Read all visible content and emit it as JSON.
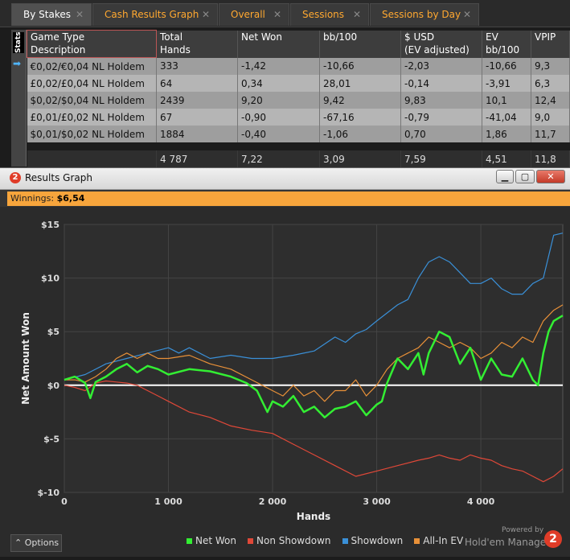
{
  "tabs": [
    {
      "label": "By Stakes",
      "active": true
    },
    {
      "label": "Cash Results Graph",
      "active": false
    },
    {
      "label": "Overall",
      "active": false
    },
    {
      "label": "Sessions",
      "active": false
    },
    {
      "label": "Sessions by Day",
      "active": false
    }
  ],
  "stats_label": "Stats",
  "table": {
    "headers": [
      [
        "Game Type",
        "Description"
      ],
      [
        "Total",
        "Hands"
      ],
      [
        "Net Won",
        ""
      ],
      [
        "bb/100",
        ""
      ],
      [
        "$ USD",
        "(EV adjusted)"
      ],
      [
        "EV",
        "bb/100"
      ],
      [
        "VPIP",
        ""
      ]
    ],
    "rows": [
      [
        "€0,02/€0,04 NL Holdem",
        "333",
        "-1,42",
        "-10,66",
        "-2,03",
        "-10,66",
        "9,3"
      ],
      [
        "£0,02/£0,04 NL Holdem",
        "64",
        "0,34",
        "28,01",
        "-0,14",
        "-3,91",
        "6,3"
      ],
      [
        "$0,02/$0,04 NL Holdem",
        "2439",
        "9,20",
        "9,42",
        "9,83",
        "10,1",
        "12,4"
      ],
      [
        "£0,01/£0,02 NL Holdem",
        "67",
        "-0,90",
        "-67,16",
        "-0,79",
        "-41,04",
        "9,0"
      ],
      [
        "$0,01/$0,02 NL Holdem",
        "1884",
        "-0,40",
        "-1,06",
        "0,70",
        "1,86",
        "11,7"
      ]
    ],
    "totals": [
      "",
      "4 787",
      "7,22",
      "3,09",
      "7,59",
      "4,51",
      "11,8"
    ]
  },
  "window": {
    "title": "Results Graph",
    "app_icon": "2",
    "minimize_icon": "minimize-icon",
    "maximize_icon": "maximize-icon",
    "close_icon": "close-icon",
    "winnings_label": "Winnings:",
    "winnings_value": "$6,54"
  },
  "options_label": "Options",
  "powered_by": "Powered by",
  "brand": "Hold'em Manager",
  "brand_logo": "2",
  "colors": {
    "net_won": "#33ee33",
    "non_showdown": "#e04838",
    "showdown": "#3a90d8",
    "all_in_ev": "#e89038",
    "accent": "#f7a53c"
  },
  "chart_data": {
    "type": "line",
    "title": "",
    "xlabel": "Hands",
    "ylabel": "Net Amount Won",
    "xlim": [
      0,
      4787
    ],
    "ylim": [
      -10,
      15
    ],
    "xticks": [
      0,
      1000,
      2000,
      3000,
      4000
    ],
    "xtick_labels": [
      "0",
      "1 000",
      "2 000",
      "3 000",
      "4 000"
    ],
    "yticks": [
      -10,
      -5,
      0,
      5,
      10,
      15
    ],
    "ytick_labels": [
      "$-10",
      "$-5",
      "$0",
      "$5",
      "$10",
      "$15"
    ],
    "grid": true,
    "legend_position": "bottom-right",
    "series": [
      {
        "name": "Net Won",
        "x": [
          0,
          100,
          200,
          250,
          300,
          400,
          500,
          600,
          700,
          800,
          900,
          1000,
          1200,
          1400,
          1600,
          1750,
          1850,
          1900,
          1950,
          2000,
          2100,
          2200,
          2300,
          2400,
          2500,
          2600,
          2700,
          2800,
          2900,
          3000,
          3050,
          3100,
          3200,
          3300,
          3400,
          3450,
          3500,
          3600,
          3700,
          3800,
          3900,
          4000,
          4100,
          4200,
          4300,
          4400,
          4500,
          4550,
          4600,
          4650,
          4700,
          4787
        ],
        "y": [
          0.5,
          0.8,
          0.2,
          -1.2,
          0.3,
          0.8,
          1.5,
          2.0,
          1.2,
          1.8,
          1.5,
          1.0,
          1.5,
          1.3,
          0.8,
          0.2,
          -0.5,
          -1.5,
          -2.5,
          -1.5,
          -2.0,
          -1.0,
          -2.5,
          -2.0,
          -3.0,
          -2.2,
          -2.0,
          -1.5,
          -2.8,
          -1.8,
          -1.5,
          0.2,
          2.5,
          1.5,
          3.0,
          1.0,
          3.0,
          5.0,
          4.5,
          2.0,
          3.5,
          0.5,
          2.5,
          1.0,
          0.8,
          2.5,
          0.5,
          0.0,
          3.0,
          5.0,
          6.0,
          6.5
        ]
      },
      {
        "name": "Non Showdown",
        "x": [
          0,
          100,
          200,
          300,
          400,
          500,
          600,
          700,
          800,
          900,
          1000,
          1200,
          1400,
          1600,
          1800,
          2000,
          2200,
          2400,
          2600,
          2800,
          3000,
          3200,
          3400,
          3500,
          3600,
          3700,
          3800,
          3900,
          4000,
          4100,
          4200,
          4300,
          4400,
          4500,
          4600,
          4700,
          4787
        ],
        "y": [
          0,
          -0.2,
          -0.5,
          0.2,
          0.4,
          0.3,
          0.2,
          0.0,
          -0.5,
          -1.0,
          -1.5,
          -2.5,
          -3.0,
          -3.8,
          -4.2,
          -4.5,
          -5.5,
          -6.5,
          -7.5,
          -8.5,
          -8.0,
          -7.5,
          -7.0,
          -6.8,
          -6.5,
          -6.8,
          -7.0,
          -6.5,
          -6.8,
          -7.0,
          -7.5,
          -7.8,
          -8.0,
          -8.5,
          -9.0,
          -8.5,
          -7.8
        ]
      },
      {
        "name": "Showdown",
        "x": [
          0,
          200,
          400,
          600,
          800,
          1000,
          1100,
          1200,
          1400,
          1600,
          1800,
          2000,
          2200,
          2400,
          2600,
          2700,
          2800,
          2900,
          3000,
          3200,
          3300,
          3400,
          3500,
          3600,
          3700,
          3800,
          3900,
          4000,
          4100,
          4200,
          4300,
          4400,
          4500,
          4600,
          4700,
          4787
        ],
        "y": [
          0.5,
          1.0,
          2.0,
          2.5,
          3.0,
          3.5,
          3.0,
          3.5,
          2.5,
          2.8,
          2.5,
          2.5,
          2.8,
          3.2,
          4.5,
          4.0,
          4.8,
          5.2,
          6.0,
          7.5,
          8.0,
          10.0,
          11.5,
          12.0,
          11.5,
          10.5,
          9.5,
          9.5,
          10.0,
          9.0,
          8.5,
          8.5,
          9.5,
          10.0,
          14.0,
          14.2
        ]
      },
      {
        "name": "All-In EV",
        "x": [
          0,
          100,
          200,
          300,
          400,
          500,
          600,
          700,
          800,
          900,
          1000,
          1200,
          1400,
          1600,
          1800,
          1900,
          2000,
          2100,
          2200,
          2300,
          2400,
          2500,
          2600,
          2700,
          2800,
          2900,
          3000,
          3100,
          3200,
          3300,
          3400,
          3500,
          3600,
          3700,
          3800,
          3900,
          4000,
          4100,
          4200,
          4300,
          4400,
          4500,
          4600,
          4700,
          4787
        ],
        "y": [
          0.5,
          0.5,
          0.3,
          0.8,
          1.5,
          2.5,
          3.0,
          2.5,
          3.0,
          2.5,
          2.5,
          2.8,
          2.0,
          1.5,
          0.5,
          0.0,
          -0.5,
          -1.0,
          0.0,
          -1.0,
          -0.5,
          -1.5,
          -0.5,
          -0.5,
          0.5,
          -1.0,
          0.0,
          1.5,
          2.5,
          3.0,
          3.5,
          4.5,
          4.0,
          3.5,
          4.0,
          3.5,
          2.5,
          3.0,
          4.0,
          3.5,
          4.5,
          4.0,
          6.0,
          7.0,
          7.5
        ]
      }
    ]
  }
}
